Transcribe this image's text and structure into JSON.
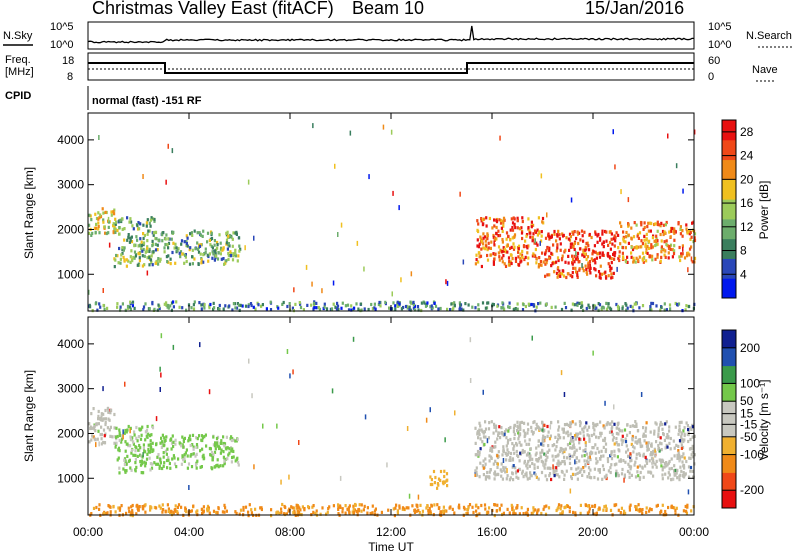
{
  "header": {
    "title": "Christmas Valley East (fitACF)",
    "beam": "Beam 10",
    "date": "15/Jan/2016"
  },
  "strips": {
    "nsky_label": "N.Sky",
    "nsearch_label": "N.Search",
    "sky_ticks": [
      "10^5",
      "10^0"
    ],
    "freq_label_line1": "Freq.",
    "freq_label_line2": "[MHz]",
    "freq_ticks": [
      "18",
      "8"
    ],
    "nave_label": "Nave",
    "nave_ticks": [
      "60",
      "0"
    ],
    "cpid_label": "CPID",
    "cpid_text": "normal (fast) -151 RF"
  },
  "colors": {
    "power_scale": [
      "#0018ee",
      "#2a47b8",
      "#3a7e5e",
      "#6cad6c",
      "#9ccb5a",
      "#f0c020",
      "#f08a18",
      "#f04818",
      "#e81010"
    ],
    "velocity_scale": [
      "#e81010",
      "#f04818",
      "#f08a18",
      "#f0b030",
      "#c8c8c0",
      "#c8c8c0",
      "#74c84a",
      "#3a9a4a",
      "#2050b0",
      "#102090"
    ],
    "ground_scatter": "#bebeb4"
  },
  "chart_data": [
    {
      "type": "heatmap",
      "title": "",
      "xlabel": "",
      "ylabel": "Slant Range [km]",
      "x_ticks": [
        "00:00",
        "04:00",
        "08:00",
        "12:00",
        "16:00",
        "20:00",
        "00:00"
      ],
      "xlim_hours": [
        0,
        24
      ],
      "y_ticks": [
        1000,
        2000,
        3000,
        4000
      ],
      "ylim": [
        180,
        4600
      ],
      "colorbar": {
        "label": "Power [dB]",
        "ticks": [
          4,
          8,
          12,
          16,
          20,
          24,
          28
        ],
        "range": [
          0,
          30
        ]
      },
      "regions": [
        {
          "start_h": 0.0,
          "end_h": 1.1,
          "range_low": 1900,
          "range_high": 2500,
          "level": 0.55
        },
        {
          "start_h": 1.0,
          "end_h": 2.6,
          "range_low": 1200,
          "range_high": 2300,
          "level": 0.42
        },
        {
          "start_h": 2.6,
          "end_h": 6.0,
          "range_low": 1250,
          "range_high": 2000,
          "level": 0.4
        },
        {
          "start_h": 0.0,
          "end_h": 15.0,
          "range_low": 220,
          "range_high": 420,
          "level": 0.3
        },
        {
          "start_h": 15.0,
          "end_h": 24.0,
          "range_low": 220,
          "range_high": 400,
          "level": 0.32
        },
        {
          "start_h": 15.3,
          "end_h": 18.0,
          "range_low": 1200,
          "range_high": 2300,
          "level": 0.78
        },
        {
          "start_h": 18.0,
          "end_h": 21.0,
          "range_low": 950,
          "range_high": 2000,
          "level": 0.88
        },
        {
          "start_h": 21.0,
          "end_h": 24.0,
          "range_low": 1300,
          "range_high": 2200,
          "level": 0.72
        }
      ]
    },
    {
      "type": "heatmap",
      "title": "",
      "xlabel": "Time UT",
      "ylabel": "Slant Range [km]",
      "x_ticks": [
        "00:00",
        "04:00",
        "08:00",
        "12:00",
        "16:00",
        "20:00",
        "00:00"
      ],
      "xlim_hours": [
        0,
        24
      ],
      "y_ticks": [
        1000,
        2000,
        3000,
        4000
      ],
      "ylim": [
        180,
        4600
      ],
      "colorbar": {
        "label": "Velocity [m s⁻¹]",
        "ticks": [
          -200,
          -100,
          -50,
          -15,
          15,
          50,
          100,
          200
        ],
        "range": [
          -250,
          250
        ]
      },
      "regions": [
        {
          "start_h": 0.0,
          "end_h": 1.1,
          "range_low": 1800,
          "range_high": 2600,
          "class": "ground"
        },
        {
          "start_h": 1.0,
          "end_h": 2.6,
          "range_low": 1150,
          "range_high": 2200,
          "class": "positive_low"
        },
        {
          "start_h": 2.6,
          "end_h": 6.0,
          "range_low": 1250,
          "range_high": 2000,
          "class": "positive_low"
        },
        {
          "start_h": 0.0,
          "end_h": 24.0,
          "range_low": 200,
          "range_high": 450,
          "class": "negative_low"
        },
        {
          "start_h": 15.3,
          "end_h": 24.0,
          "range_low": 1000,
          "range_high": 2300,
          "class": "ground"
        },
        {
          "start_h": 13.5,
          "end_h": 14.2,
          "range_low": 800,
          "range_high": 1200,
          "class": "negative_mid"
        }
      ]
    }
  ]
}
